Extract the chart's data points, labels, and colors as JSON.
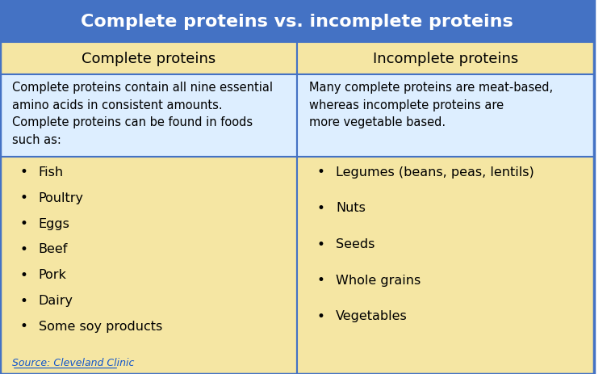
{
  "title": "Complete proteins vs. incomplete proteins",
  "title_bg": "#4472C4",
  "title_color": "#FFFFFF",
  "header_bg": "#F5E6A3",
  "header_col1": "Complete proteins",
  "header_col2": "Incomplete proteins",
  "header_text_color": "#000000",
  "desc_bg": "#DDEEFF",
  "desc_col1": "Complete proteins contain all nine essential\namino acids in consistent amounts.\nComplete proteins can be found in foods\nsuch as:",
  "desc_col2": "Many complete proteins are meat-based,\nwhereas incomplete proteins are\nmore vegetable based.",
  "list_bg": "#F5E6A3",
  "list_col1": [
    "Fish",
    "Poultry",
    "Eggs",
    "Beef",
    "Pork",
    "Dairy",
    "Some soy products"
  ],
  "list_col2": [
    "Legumes (beans, peas, lentils)",
    "Nuts",
    "Seeds",
    "Whole grains",
    "Vegetables"
  ],
  "source_text": "Source: Cleveland Clinic",
  "source_color": "#1155CC",
  "border_color": "#4472C4",
  "fig_width": 7.57,
  "fig_height": 4.64,
  "dpi": 100
}
